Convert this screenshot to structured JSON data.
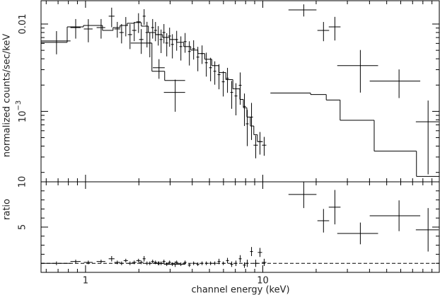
{
  "chart_data": [
    {
      "type": "spectrum",
      "ylabel": "normalized counts/sec/keV",
      "xscale": "log",
      "yscale": "log",
      "xlim": [
        0.561,
        99
      ],
      "ylim": [
        0.000156,
        0.0185
      ],
      "yticks": [
        {
          "value": 0.01,
          "label": "0.01"
        },
        {
          "value": 0.001,
          "label": "10",
          "exponent": "−3"
        }
      ],
      "yminor_ticks": [
        0.0002,
        0.0003,
        0.0004,
        0.0005,
        0.0006,
        0.0007,
        0.0008,
        0.0009,
        0.002,
        0.003,
        0.004,
        0.005,
        0.006,
        0.007,
        0.008,
        0.009
      ],
      "color": "#000000",
      "data": {
        "x": [
          0.686,
          0.88,
          1.037,
          1.224,
          1.404,
          1.511,
          1.597,
          1.687,
          1.782,
          1.883,
          1.99,
          2.063,
          2.141,
          2.222,
          2.305,
          2.391,
          2.481,
          2.573,
          2.597,
          2.669,
          2.769,
          2.872,
          2.98,
          3.09,
          3.206,
          3.266,
          3.451,
          3.646,
          3.853,
          4.071,
          4.301,
          4.545,
          4.802,
          5.074,
          5.361,
          5.662,
          5.983,
          6.321,
          6.679,
          7.057,
          7.457,
          7.879,
          8.174,
          8.637,
          9.125,
          9.641,
          10.18,
          17.02,
          22.0,
          25.5,
          35.5,
          58.7,
          85.6
        ],
        "xerr": [
          0.137,
          0.058,
          0.059,
          0.069,
          0.053,
          0.057,
          0.045,
          0.047,
          0.05,
          0.053,
          0.056,
          0.058,
          0.04,
          0.041,
          0.043,
          0.044,
          0.046,
          0.048,
          0.2,
          0.049,
          0.051,
          0.053,
          0.055,
          0.057,
          0.44,
          0.06,
          0.064,
          0.067,
          0.071,
          0.075,
          0.08,
          0.084,
          0.089,
          0.094,
          0.099,
          0.105,
          0.111,
          0.117,
          0.124,
          0.131,
          0.138,
          0.146,
          0.151,
          0.16,
          0.26,
          0.27,
          0.29,
          3.06,
          1.67,
          1.94,
          9.2,
          18.6,
          12.6
        ],
        "y": [
          0.0064,
          0.00911,
          0.00878,
          0.00911,
          0.0123,
          0.00878,
          0.008,
          0.00963,
          0.00757,
          0.00846,
          0.0106,
          0.00665,
          0.0123,
          0.008,
          0.00606,
          0.00911,
          0.00846,
          0.00757,
          0.00316,
          0.00665,
          0.008,
          0.00606,
          0.00729,
          0.00584,
          0.00165,
          0.00665,
          0.00552,
          0.00629,
          0.00485,
          0.00522,
          0.00418,
          0.00459,
          0.0036,
          0.00316,
          0.00288,
          0.00263,
          0.00218,
          0.00239,
          0.00165,
          0.0015,
          0.00199,
          0.00114,
          0.00072,
          0.00086,
          0.00041,
          0.00045,
          0.00041,
          0.0145,
          0.00846,
          0.00928,
          0.00334,
          0.00222,
          0.00076
        ],
        "yerr": [
          0.0019,
          0.0023,
          0.0026,
          0.0023,
          0.0031,
          0.0018,
          0.002,
          0.0024,
          0.0024,
          0.0021,
          0.0027,
          0.0021,
          0.0025,
          0.0026,
          0.0019,
          0.0023,
          0.0021,
          0.0019,
          0.0008,
          0.002,
          0.002,
          0.0018,
          0.0018,
          0.0018,
          0.00066,
          0.0017,
          0.0017,
          0.0016,
          0.0015,
          0.0013,
          0.0013,
          0.0011,
          0.0011,
          0.00095,
          0.00086,
          0.00084,
          0.0007,
          0.00076,
          0.00058,
          0.0006,
          0.0008,
          0.00046,
          0.00032,
          0.00039,
          0.00012,
          0.00013,
          0.0001,
          0.0023,
          0.0021,
          0.0028,
          0.0017,
          0.0008,
          0.00057
        ]
      },
      "models": [
        {
          "edges": [
            0.561,
            0.788,
            0.973,
            1.246,
            1.43,
            1.566,
            1.717,
            1.883,
            2.063,
            2.262,
            2.481,
            2.719,
            2.98,
            3.266,
            3.58,
            3.923,
            4.301,
            4.707,
            5.156,
            5.649,
            6.187,
            6.777,
            7.424,
            7.77,
            8.132,
            8.509,
            8.9,
            9.32,
            10.0,
            11.04,
            18.6,
            22.8,
            27.3,
            42.5,
            73.6,
            99
          ],
          "values": [
            0.00617,
            0.00928,
            0.00963,
            0.00846,
            0.00911,
            0.00963,
            0.0102,
            0.0104,
            0.00946,
            0.008,
            0.00757,
            0.00703,
            0.00665,
            0.00617,
            0.00552,
            0.00503,
            0.00459,
            0.00395,
            0.00334,
            0.00278,
            0.00231,
            0.00181,
            0.00137,
            0.0011,
            0.00086,
            0.00068,
            0.00054,
            0.00045,
            null,
            0.00162,
            0.00156,
            0.00135,
            0.00079,
            0.00035,
            0.00018
          ]
        },
        {
          "edges": [
            1.798,
            2.369,
            2.795,
            3.646
          ],
          "values": [
            0.00606,
            0.00288,
            0.00226
          ]
        }
      ]
    },
    {
      "type": "ratio",
      "ylabel": "ratio",
      "xlabel": "channel energy (keV)",
      "xscale": "log",
      "yscale": "linear",
      "xlim": [
        0.561,
        99
      ],
      "ylim": [
        0,
        10
      ],
      "xticks": [
        1,
        10
      ],
      "xminor_ticks": [
        0.6,
        0.7,
        0.8,
        0.9,
        2,
        3,
        4,
        5,
        6,
        7,
        8,
        9,
        20,
        30,
        40,
        50,
        60,
        70,
        80,
        90
      ],
      "yticks": [
        5,
        10
      ],
      "yminor_ticks": [
        1,
        2,
        3,
        4,
        6,
        7,
        8,
        9
      ],
      "reference_line": 1,
      "color": "#000000",
      "data": {
        "y": [
          1.0,
          1.2,
          1.1,
          1.2,
          1.5,
          1.1,
          1.0,
          1.3,
          1.0,
          1.1,
          1.3,
          1.1,
          1.5,
          1.0,
          1.0,
          1.2,
          1.1,
          1.0,
          1.0,
          1.0,
          1.2,
          0.9,
          1.1,
          0.9,
          0.9,
          1.1,
          0.9,
          1.1,
          0.8,
          1.0,
          0.9,
          1.0,
          1.0,
          1.0,
          1.0,
          1.2,
          1.0,
          1.3,
          0.9,
          1.0,
          1.5,
          0.8,
          1.0,
          2.3,
          1.0,
          2.2,
          1.1,
          8.6,
          5.7,
          7.2,
          4.3,
          6.25,
          4.7
        ],
        "yerr": [
          0.2,
          0.2,
          0.2,
          0.2,
          0.3,
          0.2,
          0.2,
          0.2,
          0.2,
          0.2,
          0.2,
          0.2,
          0.3,
          0.2,
          0.2,
          0.2,
          0.2,
          0.2,
          0.2,
          0.2,
          0.2,
          0.2,
          0.2,
          0.2,
          0.3,
          0.2,
          0.2,
          0.2,
          0.2,
          0.2,
          0.2,
          0.2,
          0.2,
          0.2,
          0.2,
          0.3,
          0.2,
          0.3,
          0.3,
          0.3,
          0.4,
          0.3,
          0.4,
          0.5,
          0.4,
          0.5,
          0.4,
          1.5,
          1.3,
          1.9,
          1.2,
          1.7,
          2.4
        ]
      }
    }
  ]
}
